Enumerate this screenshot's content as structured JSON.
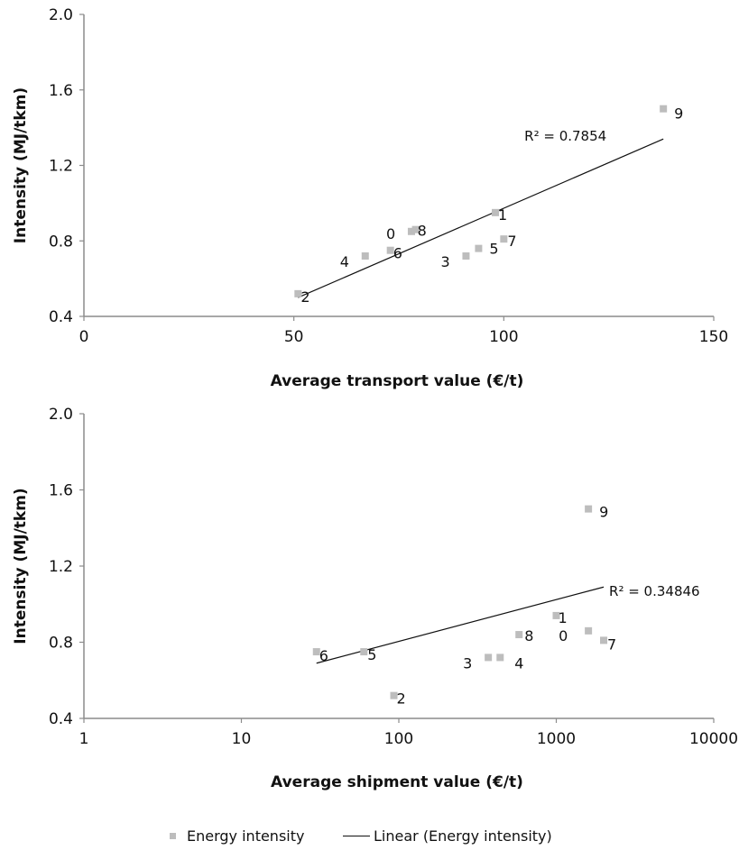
{
  "chart_data": [
    {
      "type": "scatter",
      "xlabel": "Average transport value (€/t)",
      "ylabel": "Intensity (MJ/tkm)",
      "xscale": "linear",
      "xlim": [
        0,
        150
      ],
      "ylim": [
        0.4,
        2.0
      ],
      "xticks": [
        0,
        50,
        100,
        150
      ],
      "xtick_labels": [
        "0",
        "50",
        "100",
        "150"
      ],
      "yticks": [
        0.4,
        0.8,
        1.2,
        1.6,
        2.0
      ],
      "ytick_labels": [
        "0.4",
        "0.8",
        "1.2",
        "1.6",
        "2.0"
      ],
      "grid": false,
      "series": [
        {
          "name": "Energy intensity",
          "points": [
            {
              "label": "0",
              "x": 78,
              "y": 0.85
            },
            {
              "label": "1",
              "x": 98,
              "y": 0.95
            },
            {
              "label": "2",
              "x": 51,
              "y": 0.52
            },
            {
              "label": "3",
              "x": 91,
              "y": 0.72
            },
            {
              "label": "4",
              "x": 67,
              "y": 0.72
            },
            {
              "label": "5",
              "x": 94,
              "y": 0.76
            },
            {
              "label": "6",
              "x": 73,
              "y": 0.75
            },
            {
              "label": "7",
              "x": 100,
              "y": 0.81
            },
            {
              "label": "8",
              "x": 79,
              "y": 0.86
            },
            {
              "label": "9",
              "x": 138,
              "y": 1.5
            }
          ]
        }
      ],
      "trendline": {
        "name": "Linear (Energy intensity)",
        "x_start": 51,
        "y_start": 0.5,
        "x_end": 138,
        "y_end": 1.34,
        "r2_text": "R² = 0.7854"
      }
    },
    {
      "type": "scatter",
      "xlabel": "Average shipment value (€/t)",
      "ylabel": "Intensity (MJ/tkm)",
      "xscale": "log",
      "xlim": [
        1,
        10000
      ],
      "ylim": [
        0.4,
        2.0
      ],
      "xticks": [
        1,
        10,
        100,
        1000,
        10000
      ],
      "xtick_labels": [
        "1",
        "10",
        "100",
        "1000",
        "10000"
      ],
      "yticks": [
        0.4,
        0.8,
        1.2,
        1.6,
        2.0
      ],
      "ytick_labels": [
        "0.4",
        "0.8",
        "1.2",
        "1.6",
        "2.0"
      ],
      "grid": false,
      "series": [
        {
          "name": "Energy intensity",
          "points": [
            {
              "label": "0",
              "x": 1600,
              "y": 0.86
            },
            {
              "label": "1",
              "x": 1000,
              "y": 0.94
            },
            {
              "label": "2",
              "x": 93,
              "y": 0.52
            },
            {
              "label": "3",
              "x": 370,
              "y": 0.72
            },
            {
              "label": "4",
              "x": 440,
              "y": 0.72
            },
            {
              "label": "5",
              "x": 60,
              "y": 0.75
            },
            {
              "label": "6",
              "x": 30,
              "y": 0.75
            },
            {
              "label": "7",
              "x": 2000,
              "y": 0.81
            },
            {
              "label": "8",
              "x": 580,
              "y": 0.84
            },
            {
              "label": "9",
              "x": 1600,
              "y": 1.5
            }
          ]
        }
      ],
      "trendline": {
        "name": "Linear (Energy intensity)",
        "x_start": 30,
        "y_start": 0.69,
        "x_end": 2000,
        "y_end": 1.09,
        "r2_text": "R² = 0.34846"
      }
    }
  ],
  "legend": {
    "items": [
      {
        "label": "Energy intensity",
        "marker": "square",
        "color": "#bdbdbd"
      },
      {
        "label": "Linear (Energy intensity)",
        "marker": "line",
        "color": "#111111"
      }
    ]
  },
  "colors": {
    "marker": "#bdbdbd",
    "axis": "#8c8c8c",
    "trendline": "#111111"
  }
}
